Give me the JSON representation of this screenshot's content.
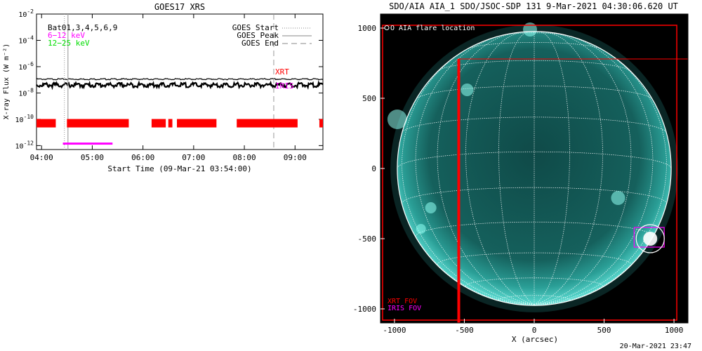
{
  "chart_data": [
    {
      "type": "line",
      "title": "GOES17 XRS",
      "xlabel": "Start Time (09-Mar-21 03:54:00)",
      "ylabel": "X-ray Flux (W m⁻²)",
      "x_ticks": [
        "04:00",
        "05:00",
        "06:00",
        "07:00",
        "08:00",
        "09:00"
      ],
      "xlim_hours": [
        3.9,
        9.55
      ],
      "y_log_ticks": [
        -12,
        -10,
        -8,
        -6,
        -4,
        -2
      ],
      "ylim_log10": [
        -12.3,
        -2
      ],
      "legend_left": [
        {
          "label": "Bat01,3,4,5,6,9",
          "color": "#000000"
        },
        {
          "label": "6−12 keV",
          "color": "#ff00ff"
        },
        {
          "label": "12−25 keV",
          "color": "#00dd00"
        }
      ],
      "legend_right": [
        {
          "label": "GOES Start",
          "style": "dotted"
        },
        {
          "label": "GOES Peak",
          "style": "solid"
        },
        {
          "label": "GOES End",
          "style": "dashed"
        }
      ],
      "annotations": [
        {
          "label": "XRT",
          "color": "#ff0000"
        },
        {
          "label": "IRIS",
          "color": "#ff00ff"
        }
      ],
      "series": [
        {
          "name": "GOES high",
          "log_flux": -6.95
        },
        {
          "name": "GOES low",
          "log_flux": -7.4
        }
      ],
      "goes_start": 4.45,
      "goes_peak": 4.52,
      "goes_end": 8.58,
      "coverage_bars": [
        [
          3.9,
          4.28
        ],
        [
          4.5,
          5.72
        ],
        [
          6.17,
          6.45
        ],
        [
          6.5,
          6.58
        ],
        [
          6.67,
          7.45
        ],
        [
          7.85,
          9.05
        ],
        [
          9.48,
          9.55
        ]
      ],
      "coverage_log": -10.3,
      "iris_bar": [
        4.42,
        5.4
      ],
      "iris_log": -11.85
    },
    {
      "type": "scatter",
      "title": "SDO/AIA AIA_1 SDO/JSOC-SDP 131  9-Mar-2021 04:30:06.620 UT",
      "xlabel": "X (arcsec)",
      "ylabel": "",
      "x_ticks": [
        -1000,
        -500,
        0,
        500,
        1000
      ],
      "y_ticks": [
        -1000,
        -500,
        0,
        500,
        1000
      ],
      "xlim": [
        -1100,
        1100
      ],
      "ylim": [
        -1100,
        1100
      ],
      "legend": "O AIA flare location",
      "fov_labels": [
        {
          "label": "XRT FOV",
          "color": "#ff0000"
        },
        {
          "label": "IRIS FOV",
          "color": "#ff00ff"
        }
      ],
      "flare_location": [
        830,
        -500
      ],
      "solar_radius_arcsec": 980,
      "xrt_fov": [
        [
          -1085,
          -1080,
          1020,
          1020
        ],
        [
          -540,
          -1100,
          1100,
          780
        ]
      ],
      "iris_fov": [
        715,
        -560,
        930,
        -420
      ],
      "timestamp": "20-Mar-2021 23:47"
    }
  ]
}
